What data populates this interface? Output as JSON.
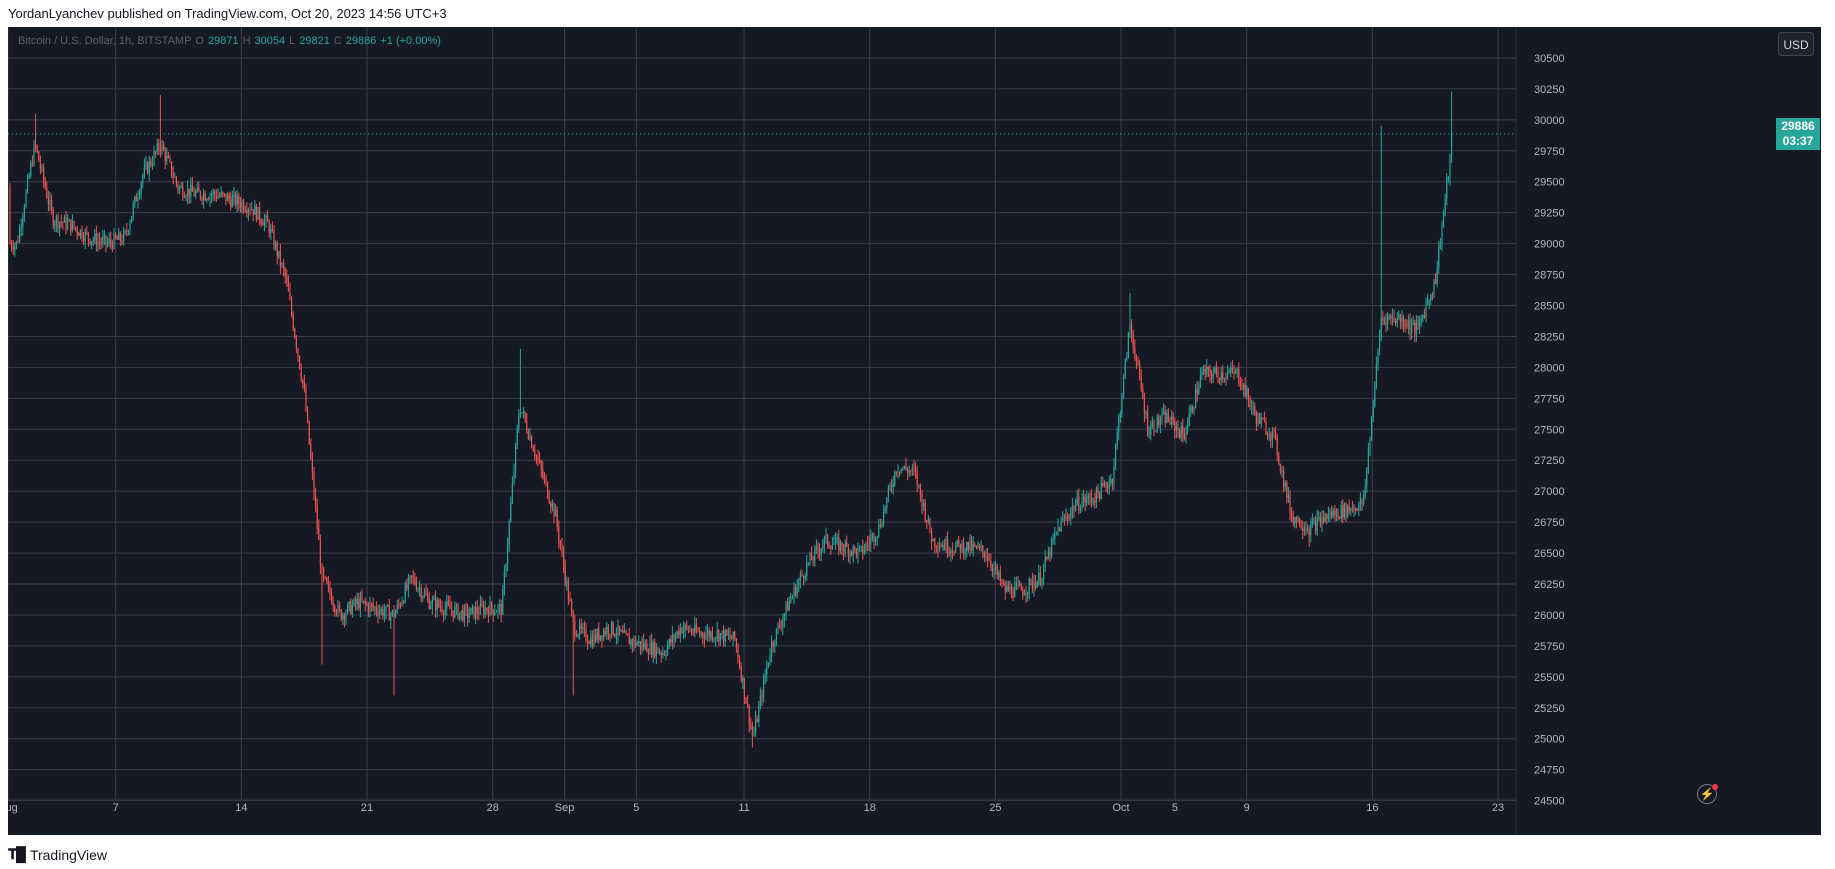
{
  "header": {
    "publish_text": "YordanLyanchev published on TradingView.com, Oct 20, 2023 14:56 UTC+3"
  },
  "toolbar": {
    "currency": "USD"
  },
  "legend": {
    "symbol": "Bitcoin / U.S. Dollar, 1h, BITSTAMP",
    "open_label": "O",
    "open": "29871",
    "high_label": "H",
    "high": "30054",
    "low_label": "L",
    "low": "29821",
    "close_label": "C",
    "close": "29886",
    "change": "+1 (+0.00%)"
  },
  "last_price": {
    "price": "29886",
    "countdown": "03:37",
    "value": 29886
  },
  "footer": {
    "brand": "TradingView"
  },
  "colors": {
    "background": "#151924",
    "grid": "#3a3e4a",
    "up": "#26a69a",
    "down": "#ef5350",
    "axis_text": "#b2b5be"
  },
  "icons": {
    "alert": "lightning-alert-icon",
    "logo": "tradingview-logo-icon"
  },
  "chart_data": {
    "type": "candlestick",
    "symbol": "Bitcoin / U.S. Dollar, 1h, BITSTAMP",
    "interval": "1h",
    "xlabels": [
      "Aug",
      "7",
      "14",
      "21",
      "28",
      "Sep",
      "5",
      "11",
      "18",
      "25",
      "Oct",
      "5",
      "9",
      "16",
      "23"
    ],
    "xlabel_dates": [
      "2023-08-01",
      "2023-08-07",
      "2023-08-14",
      "2023-08-21",
      "2023-08-28",
      "2023-09-01",
      "2023-09-05",
      "2023-09-11",
      "2023-09-18",
      "2023-09-25",
      "2023-10-02",
      "2023-10-05",
      "2023-10-09",
      "2023-10-16",
      "2023-10-23"
    ],
    "y_ticks": [
      24500,
      24750,
      25000,
      25250,
      25500,
      25750,
      26000,
      26250,
      26500,
      26750,
      27000,
      27250,
      27500,
      27750,
      28000,
      28250,
      28500,
      28750,
      29000,
      29250,
      29500,
      29750,
      30000,
      30250,
      30500
    ],
    "ylim": [
      24400,
      30750
    ],
    "price_path": [
      [
        "2023-08-01",
        29450
      ],
      [
        "2023-08-01",
        29000
      ],
      [
        "2023-08-02",
        29800
      ],
      [
        "2023-08-03",
        29200
      ],
      [
        "2023-08-04",
        29150
      ],
      [
        "2023-08-05",
        29050
      ],
      [
        "2023-08-06",
        29000
      ],
      [
        "2023-08-07",
        29050
      ],
      [
        "2023-08-08",
        29550
      ],
      [
        "2023-08-09",
        29800
      ],
      [
        "2023-08-10",
        29450
      ],
      [
        "2023-08-11",
        29400
      ],
      [
        "2023-08-12",
        29400
      ],
      [
        "2023-08-13",
        29350
      ],
      [
        "2023-08-14",
        29300
      ],
      [
        "2023-08-15",
        29150
      ],
      [
        "2023-08-16",
        28700
      ],
      [
        "2023-08-17",
        27800
      ],
      [
        "2023-08-18",
        26300
      ],
      [
        "2023-08-19",
        26000
      ],
      [
        "2023-08-20",
        26100
      ],
      [
        "2023-08-21",
        26050
      ],
      [
        "2023-08-22",
        26000
      ],
      [
        "2023-08-23",
        26300
      ],
      [
        "2023-08-24",
        26100
      ],
      [
        "2023-08-25",
        26050
      ],
      [
        "2023-08-26",
        26000
      ],
      [
        "2023-08-27",
        26050
      ],
      [
        "2023-08-28",
        26050
      ],
      [
        "2023-08-29",
        27700
      ],
      [
        "2023-08-30",
        27250
      ],
      [
        "2023-08-31",
        26800
      ],
      [
        "2023-09-01",
        25900
      ],
      [
        "2023-09-02",
        25800
      ],
      [
        "2023-09-03",
        25900
      ],
      [
        "2023-09-04",
        25800
      ],
      [
        "2023-09-05",
        25750
      ],
      [
        "2023-09-06",
        25700
      ],
      [
        "2023-09-07",
        25900
      ],
      [
        "2023-09-08",
        25850
      ],
      [
        "2023-09-09",
        25850
      ],
      [
        "2023-09-10",
        25800
      ],
      [
        "2023-09-11",
        25000
      ],
      [
        "2023-09-12",
        25750
      ],
      [
        "2023-09-13",
        26100
      ],
      [
        "2023-09-14",
        26400
      ],
      [
        "2023-09-15",
        26600
      ],
      [
        "2023-09-16",
        26550
      ],
      [
        "2023-09-17",
        26500
      ],
      [
        "2023-09-18",
        26700
      ],
      [
        "2023-09-19",
        27200
      ],
      [
        "2023-09-20",
        27150
      ],
      [
        "2023-09-21",
        26600
      ],
      [
        "2023-09-22",
        26550
      ],
      [
        "2023-09-23",
        26550
      ],
      [
        "2023-09-24",
        26500
      ],
      [
        "2023-09-25",
        26200
      ],
      [
        "2023-09-26",
        26200
      ],
      [
        "2023-09-27",
        26300
      ],
      [
        "2023-09-28",
        26700
      ],
      [
        "2023-09-29",
        26900
      ],
      [
        "2023-09-30",
        26950
      ],
      [
        "2023-10-01",
        27100
      ],
      [
        "2023-10-02",
        28350
      ],
      [
        "2023-10-03",
        27500
      ],
      [
        "2023-10-04",
        27600
      ],
      [
        "2023-10-05",
        27450
      ],
      [
        "2023-10-06",
        27950
      ],
      [
        "2023-10-07",
        27950
      ],
      [
        "2023-10-08",
        27950
      ],
      [
        "2023-10-09",
        27600
      ],
      [
        "2023-10-10",
        27450
      ],
      [
        "2023-10-11",
        26800
      ],
      [
        "2023-10-12",
        26700
      ],
      [
        "2023-10-13",
        26800
      ],
      [
        "2023-10-14",
        26850
      ],
      [
        "2023-10-15",
        26900
      ],
      [
        "2023-10-16",
        28400
      ],
      [
        "2023-10-17",
        28400
      ],
      [
        "2023-10-18",
        28300
      ],
      [
        "2023-10-19",
        28700
      ],
      [
        "2023-10-20",
        29886
      ]
    ],
    "notable_highs": [
      {
        "date": "2023-08-02",
        "value": 30050
      },
      {
        "date": "2023-08-09",
        "value": 30200
      },
      {
        "date": "2023-08-29",
        "value": 28150
      },
      {
        "date": "2023-10-02",
        "value": 28600
      },
      {
        "date": "2023-10-16",
        "value": 29950
      },
      {
        "date": "2023-10-20",
        "value": 30230
      }
    ],
    "notable_lows": [
      {
        "date": "2023-08-18",
        "value": 25600
      },
      {
        "date": "2023-08-22",
        "value": 25350
      },
      {
        "date": "2023-09-01",
        "value": 25350
      },
      {
        "date": "2023-09-11",
        "value": 24930
      },
      {
        "date": "2023-10-12",
        "value": 26550
      }
    ],
    "last_price": 29886
  }
}
